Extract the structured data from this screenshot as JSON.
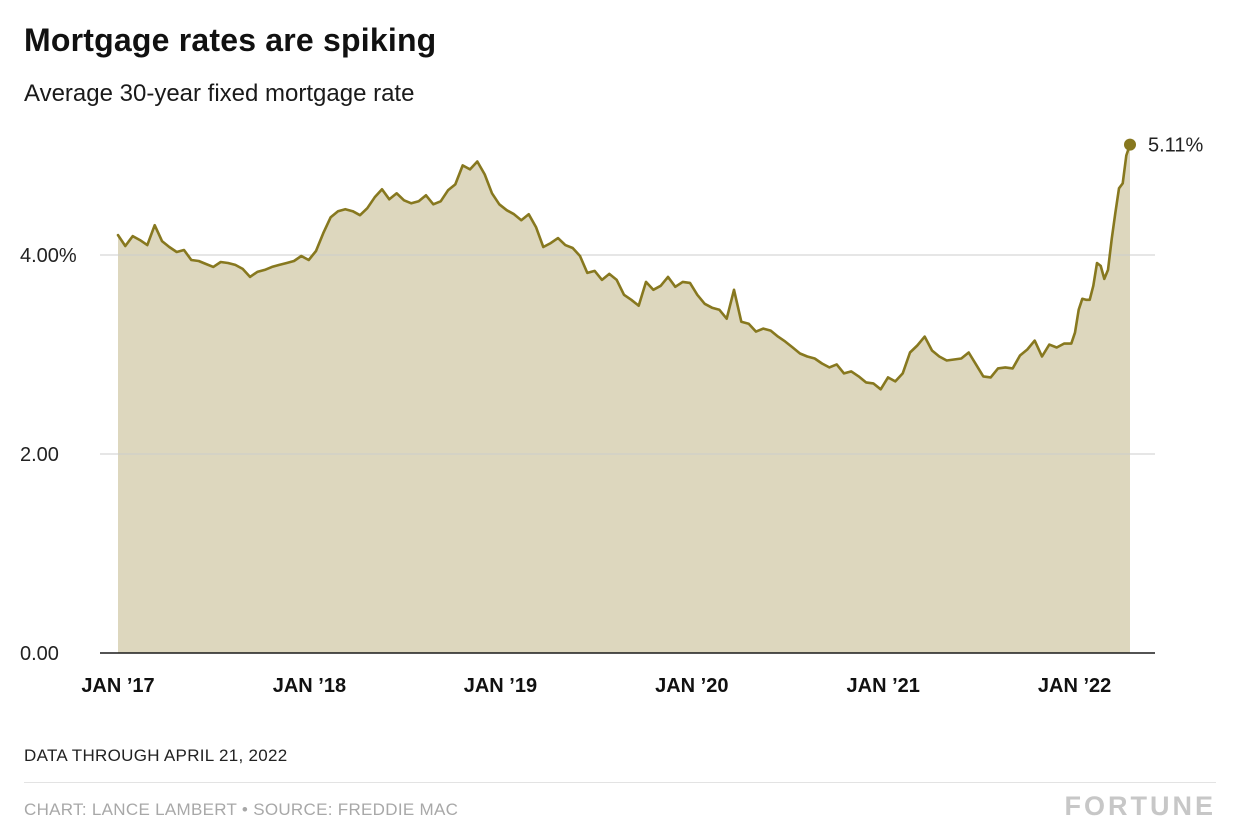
{
  "header": {
    "title": "Mortgage rates are spiking",
    "subtitle": "Average 30-year fixed mortgage rate"
  },
  "footer": {
    "data_through": "DATA THROUGH APRIL 21, 2022",
    "credit": "CHART: LANCE LAMBERT • SOURCE: FREDDIE MAC",
    "brand": "FORTUNE"
  },
  "chart_data": {
    "type": "area",
    "title": "Mortgage rates are spiking",
    "subtitle": "Average 30-year fixed mortgage rate",
    "unit": "%",
    "x_unit": "weeks since Jan 2017",
    "ylim": [
      0,
      5.35
    ],
    "grid": "horizontal",
    "legend": "none",
    "end_label": "5.11%",
    "last_value": 5.11,
    "colors": {
      "line": "#87781F",
      "fill": "#DDD7BE",
      "grid": "#cccccc",
      "axis": "#1a1a1a",
      "label": "#222222"
    },
    "y_ticks": [
      {
        "value": 0,
        "label": "0.00"
      },
      {
        "value": 2,
        "label": "2.00"
      },
      {
        "value": 4,
        "label": "4.00%"
      }
    ],
    "x_ticks": [
      {
        "week": 0,
        "label": "JAN ’17"
      },
      {
        "week": 52.2,
        "label": "JAN ’18"
      },
      {
        "week": 104.3,
        "label": "JAN ’19"
      },
      {
        "week": 156.5,
        "label": "JAN ’20"
      },
      {
        "week": 208.7,
        "label": "JAN ’21"
      },
      {
        "week": 260.9,
        "label": "JAN ’22"
      }
    ],
    "points": [
      [
        0,
        4.2
      ],
      [
        2,
        4.09
      ],
      [
        4,
        4.19
      ],
      [
        6,
        4.15
      ],
      [
        8,
        4.1
      ],
      [
        10,
        4.3
      ],
      [
        12,
        4.14
      ],
      [
        14,
        4.08
      ],
      [
        16,
        4.03
      ],
      [
        18,
        4.05
      ],
      [
        20,
        3.95
      ],
      [
        22,
        3.94
      ],
      [
        24,
        3.91
      ],
      [
        26,
        3.88
      ],
      [
        28,
        3.93
      ],
      [
        30,
        3.92
      ],
      [
        32,
        3.9
      ],
      [
        34,
        3.86
      ],
      [
        36,
        3.78
      ],
      [
        38,
        3.83
      ],
      [
        40,
        3.85
      ],
      [
        42,
        3.88
      ],
      [
        44,
        3.9
      ],
      [
        46,
        3.92
      ],
      [
        48,
        3.94
      ],
      [
        50,
        3.99
      ],
      [
        52,
        3.95
      ],
      [
        54,
        4.04
      ],
      [
        56,
        4.22
      ],
      [
        58,
        4.38
      ],
      [
        60,
        4.44
      ],
      [
        62,
        4.46
      ],
      [
        64,
        4.44
      ],
      [
        66,
        4.4
      ],
      [
        68,
        4.47
      ],
      [
        70,
        4.58
      ],
      [
        72,
        4.66
      ],
      [
        74,
        4.56
      ],
      [
        76,
        4.62
      ],
      [
        78,
        4.55
      ],
      [
        80,
        4.52
      ],
      [
        82,
        4.54
      ],
      [
        84,
        4.6
      ],
      [
        86,
        4.51
      ],
      [
        88,
        4.54
      ],
      [
        90,
        4.65
      ],
      [
        92,
        4.71
      ],
      [
        94,
        4.9
      ],
      [
        96,
        4.86
      ],
      [
        98,
        4.94
      ],
      [
        100,
        4.81
      ],
      [
        102,
        4.62
      ],
      [
        104,
        4.51
      ],
      [
        106,
        4.45
      ],
      [
        108,
        4.41
      ],
      [
        110,
        4.35
      ],
      [
        112,
        4.41
      ],
      [
        114,
        4.28
      ],
      [
        116,
        4.08
      ],
      [
        118,
        4.12
      ],
      [
        120,
        4.17
      ],
      [
        122,
        4.1
      ],
      [
        124,
        4.07
      ],
      [
        126,
        3.99
      ],
      [
        128,
        3.82
      ],
      [
        130,
        3.84
      ],
      [
        132,
        3.75
      ],
      [
        134,
        3.81
      ],
      [
        136,
        3.75
      ],
      [
        138,
        3.6
      ],
      [
        140,
        3.55
      ],
      [
        142,
        3.49
      ],
      [
        144,
        3.73
      ],
      [
        146,
        3.65
      ],
      [
        148,
        3.69
      ],
      [
        150,
        3.78
      ],
      [
        152,
        3.68
      ],
      [
        154,
        3.73
      ],
      [
        156,
        3.72
      ],
      [
        158,
        3.6
      ],
      [
        160,
        3.51
      ],
      [
        162,
        3.47
      ],
      [
        164,
        3.45
      ],
      [
        166,
        3.36
      ],
      [
        168,
        3.65
      ],
      [
        170,
        3.33
      ],
      [
        172,
        3.31
      ],
      [
        174,
        3.23
      ],
      [
        176,
        3.26
      ],
      [
        178,
        3.24
      ],
      [
        180,
        3.18
      ],
      [
        182,
        3.13
      ],
      [
        184,
        3.07
      ],
      [
        186,
        3.01
      ],
      [
        188,
        2.98
      ],
      [
        190,
        2.96
      ],
      [
        192,
        2.91
      ],
      [
        194,
        2.87
      ],
      [
        196,
        2.9
      ],
      [
        198,
        2.81
      ],
      [
        200,
        2.83
      ],
      [
        202,
        2.78
      ],
      [
        204,
        2.72
      ],
      [
        206,
        2.71
      ],
      [
        208,
        2.65
      ],
      [
        210,
        2.77
      ],
      [
        212,
        2.73
      ],
      [
        214,
        2.81
      ],
      [
        216,
        3.02
      ],
      [
        218,
        3.09
      ],
      [
        220,
        3.18
      ],
      [
        222,
        3.04
      ],
      [
        224,
        2.98
      ],
      [
        226,
        2.94
      ],
      [
        228,
        2.95
      ],
      [
        230,
        2.96
      ],
      [
        232,
        3.02
      ],
      [
        234,
        2.9
      ],
      [
        236,
        2.78
      ],
      [
        238,
        2.77
      ],
      [
        240,
        2.86
      ],
      [
        242,
        2.87
      ],
      [
        244,
        2.86
      ],
      [
        246,
        2.99
      ],
      [
        248,
        3.05
      ],
      [
        250,
        3.14
      ],
      [
        252,
        2.98
      ],
      [
        254,
        3.1
      ],
      [
        256,
        3.07
      ],
      [
        258,
        3.11
      ],
      [
        260,
        3.11
      ],
      [
        261,
        3.22
      ],
      [
        262,
        3.45
      ],
      [
        263,
        3.56
      ],
      [
        264,
        3.55
      ],
      [
        265,
        3.55
      ],
      [
        266,
        3.69
      ],
      [
        267,
        3.92
      ],
      [
        268,
        3.89
      ],
      [
        269,
        3.76
      ],
      [
        270,
        3.85
      ],
      [
        271,
        4.16
      ],
      [
        272,
        4.42
      ],
      [
        273,
        4.67
      ],
      [
        274,
        4.72
      ],
      [
        275,
        5.0
      ],
      [
        276,
        5.11
      ]
    ]
  }
}
